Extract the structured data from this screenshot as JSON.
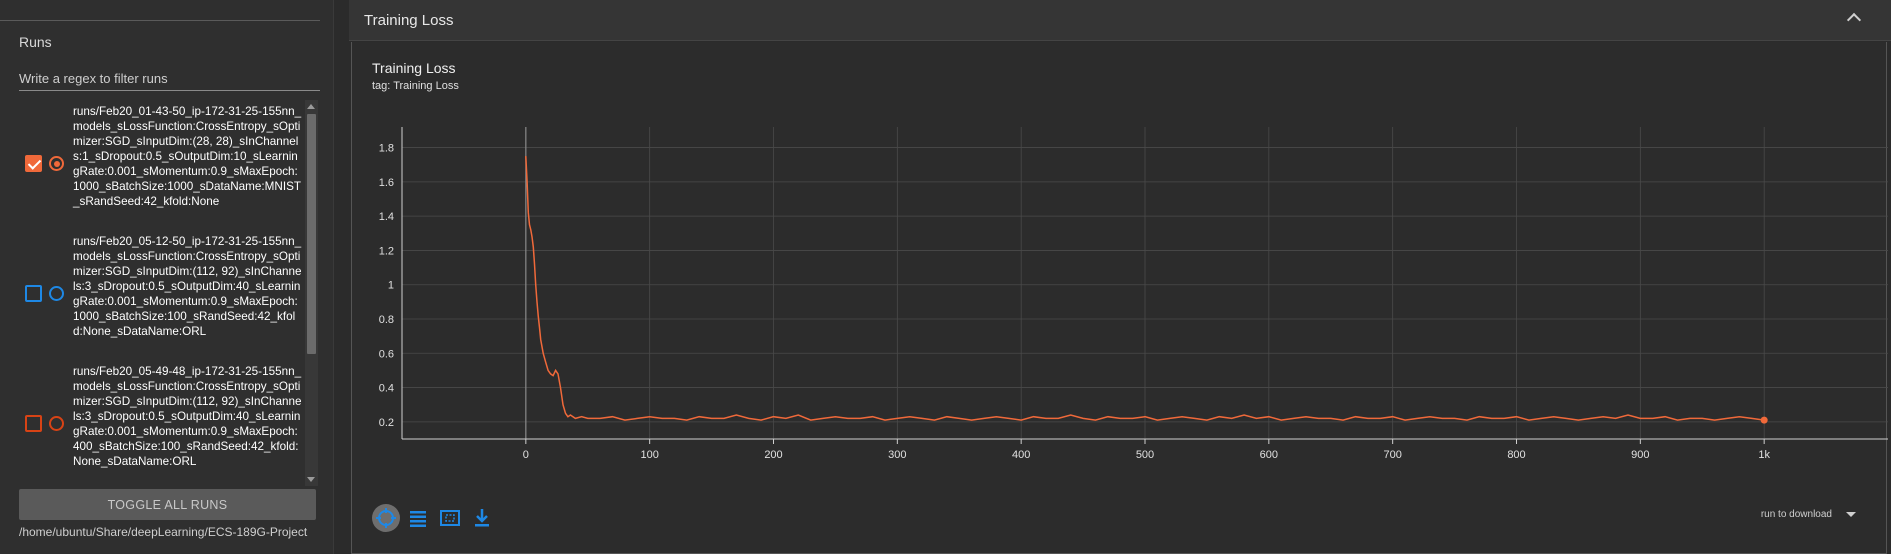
{
  "sidebar": {
    "runs_title": "Runs",
    "filter_placeholder": "Write a regex to filter runs",
    "runs": [
      {
        "name": "runs/Feb20_01-43-50_ip-172-31-25-155nn_models_sLossFunction:CrossEntropy_sOptimizer:SGD_sInputDim:(28, 28)_sInChannels:1_sDropout:0.5_sOutputDim:10_sLearningRate:0.001_sMomentum:0.9_sMaxEpoch:1000_sBatchSize:1000_sDataName:MNIST_sRandSeed:42_kfold:None",
        "checked": true,
        "selected": true,
        "color": "#f0693a"
      },
      {
        "name": "runs/Feb20_05-12-50_ip-172-31-25-155nn_models_sLossFunction:CrossEntropy_sOptimizer:SGD_sInputDim:(112, 92)_sInChannels:3_sDropout:0.5_sOutputDim:40_sLearningRate:0.001_sMomentum:0.9_sMaxEpoch:1000_sBatchSize:100_sRandSeed:42_kfold:None_sDataName:ORL",
        "checked": false,
        "selected": false,
        "color": "#1e88e5"
      },
      {
        "name": "runs/Feb20_05-49-48_ip-172-31-25-155nn_models_sLossFunction:CrossEntropy_sOptimizer:SGD_sInputDim:(112, 92)_sInChannels:3_sDropout:0.5_sOutputDim:40_sLearningRate:0.001_sMomentum:0.9_sMaxEpoch:400_sBatchSize:100_sRandSeed:42_kfold:None_sDataName:ORL",
        "checked": false,
        "selected": false,
        "color": "#d84315"
      }
    ],
    "toggle_all_label": "TOGGLE ALL RUNS",
    "logdir": "/home/ubuntu/Share/deepLearning/ECS-189G-Project"
  },
  "section": {
    "title": "Training Loss",
    "collapse_icon": "chevron-up-icon"
  },
  "card": {
    "title": "Training Loss",
    "tag": "tag: Training Loss",
    "toolbar": [
      "fit-domain-icon",
      "data-table-icon",
      "toggle-y-log-icon",
      "download-icon"
    ],
    "download_label": "run to download"
  },
  "colors": {
    "accent": "#f0693a",
    "background": "#2b2b2b",
    "grid": "#4a4a4a"
  },
  "chart_data": {
    "type": "line",
    "title": "",
    "xlabel": "",
    "ylabel": "",
    "xlim": [
      -100,
      1100
    ],
    "ylim": [
      0.1,
      1.92
    ],
    "x_ticks": [
      0,
      100,
      200,
      300,
      400,
      500,
      600,
      700,
      800,
      900,
      1000
    ],
    "x_tick_labels": [
      "0",
      "100",
      "200",
      "300",
      "400",
      "500",
      "600",
      "700",
      "800",
      "900",
      "1k"
    ],
    "y_ticks": [
      0.2,
      0.4,
      0.6,
      0.8,
      1,
      1.2,
      1.4,
      1.6,
      1.8
    ],
    "y_tick_labels": [
      "0.2",
      "0.4",
      "0.6",
      "0.8",
      "1",
      "1.2",
      "1.4",
      "1.6",
      "1.8"
    ],
    "grid": true,
    "series": [
      {
        "color": "#f0693a",
        "x": [
          0,
          1,
          2,
          3,
          4,
          5,
          6,
          7,
          8,
          9,
          10,
          11,
          12,
          14,
          16,
          18,
          20,
          22,
          24,
          26,
          28,
          30,
          32,
          34,
          36,
          40,
          45,
          50,
          60,
          70,
          80,
          90,
          100,
          110,
          120,
          130,
          140,
          150,
          160,
          170,
          180,
          190,
          200,
          210,
          220,
          230,
          240,
          250,
          260,
          270,
          280,
          290,
          300,
          310,
          320,
          330,
          340,
          350,
          360,
          370,
          380,
          390,
          400,
          410,
          420,
          430,
          440,
          450,
          460,
          470,
          480,
          490,
          500,
          510,
          520,
          530,
          540,
          550,
          560,
          570,
          580,
          590,
          600,
          610,
          620,
          630,
          640,
          650,
          660,
          670,
          680,
          690,
          700,
          710,
          720,
          730,
          740,
          750,
          760,
          770,
          780,
          790,
          800,
          810,
          820,
          830,
          840,
          850,
          860,
          870,
          880,
          890,
          900,
          910,
          920,
          930,
          940,
          950,
          960,
          970,
          980,
          990,
          1000
        ],
        "y": [
          1.75,
          1.6,
          1.42,
          1.35,
          1.32,
          1.28,
          1.22,
          1.12,
          1.0,
          0.9,
          0.82,
          0.75,
          0.68,
          0.6,
          0.55,
          0.5,
          0.48,
          0.47,
          0.5,
          0.48,
          0.4,
          0.3,
          0.25,
          0.23,
          0.24,
          0.22,
          0.23,
          0.22,
          0.22,
          0.23,
          0.21,
          0.22,
          0.23,
          0.22,
          0.22,
          0.21,
          0.23,
          0.22,
          0.22,
          0.24,
          0.22,
          0.21,
          0.23,
          0.22,
          0.24,
          0.21,
          0.22,
          0.23,
          0.22,
          0.22,
          0.23,
          0.21,
          0.22,
          0.23,
          0.22,
          0.21,
          0.23,
          0.22,
          0.21,
          0.22,
          0.23,
          0.22,
          0.21,
          0.23,
          0.22,
          0.22,
          0.24,
          0.22,
          0.21,
          0.23,
          0.22,
          0.22,
          0.23,
          0.21,
          0.22,
          0.23,
          0.22,
          0.21,
          0.23,
          0.22,
          0.24,
          0.22,
          0.23,
          0.21,
          0.22,
          0.23,
          0.22,
          0.22,
          0.21,
          0.23,
          0.22,
          0.22,
          0.23,
          0.21,
          0.22,
          0.23,
          0.22,
          0.22,
          0.21,
          0.23,
          0.22,
          0.22,
          0.23,
          0.21,
          0.22,
          0.23,
          0.22,
          0.21,
          0.22,
          0.23,
          0.22,
          0.24,
          0.22,
          0.22,
          0.23,
          0.21,
          0.22,
          0.22,
          0.21,
          0.22,
          0.23,
          0.22,
          0.21
        ]
      }
    ]
  }
}
